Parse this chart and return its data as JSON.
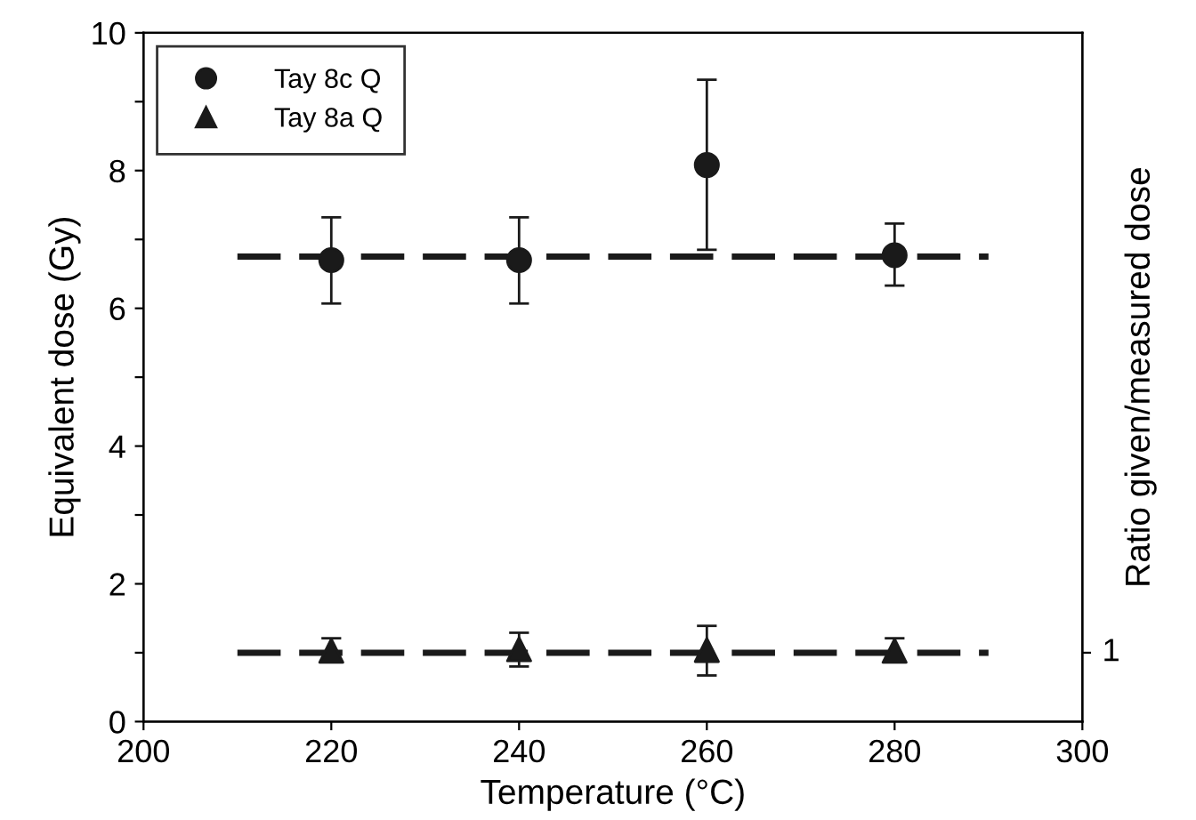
{
  "chart_data": {
    "type": "scatter",
    "xlabel": "Temperature (°C)",
    "ylabel": "Equivalent dose (Gy)",
    "y2label": "Ratio given/measured dose",
    "xlim": [
      200,
      300
    ],
    "xticks": [
      200,
      220,
      240,
      260,
      280,
      300
    ],
    "ylim": [
      0,
      10
    ],
    "yticks": [
      0,
      {
        "value": 1,
        "label": null
      },
      2,
      {
        "value": 3,
        "label": null
      },
      4,
      {
        "value": 5,
        "label": null
      },
      6,
      {
        "value": 7,
        "label": null
      },
      8,
      {
        "value": 9,
        "label": null
      },
      10
    ],
    "annotations": [
      "1"
    ],
    "legend": "top left",
    "series": [
      {
        "name": "Tay 8c Q",
        "marker": "circle",
        "color": "#1a1a1a",
        "x": [
          220,
          240,
          260,
          280
        ],
        "values": [
          6.7,
          6.7,
          8.08,
          6.77
        ],
        "errors": [
          [
            6.07,
            7.32
          ],
          [
            6.07,
            7.32
          ],
          [
            6.85,
            9.32
          ],
          [
            6.33,
            7.23
          ]
        ]
      },
      {
        "name": "Tay 8a Q",
        "marker": "triangle",
        "color": "#1a1a1a",
        "x": [
          220,
          240,
          260,
          280
        ],
        "values": [
          1.03,
          1.05,
          1.04,
          1.03
        ],
        "errors": [
          [
            0.89,
            1.21
          ],
          [
            0.8,
            1.29
          ],
          [
            0.67,
            1.39
          ],
          [
            0.9,
            1.21
          ]
        ]
      },
      {
        "type": "line",
        "line_style": "dashed",
        "color": "#1a1a1a",
        "x": [
          210,
          290
        ],
        "values": [
          6.75,
          6.75
        ]
      },
      {
        "type": "line",
        "line_style": "dashed",
        "color": "#1a1a1a",
        "x": [
          210,
          290
        ],
        "values": [
          1,
          1
        ]
      }
    ]
  }
}
